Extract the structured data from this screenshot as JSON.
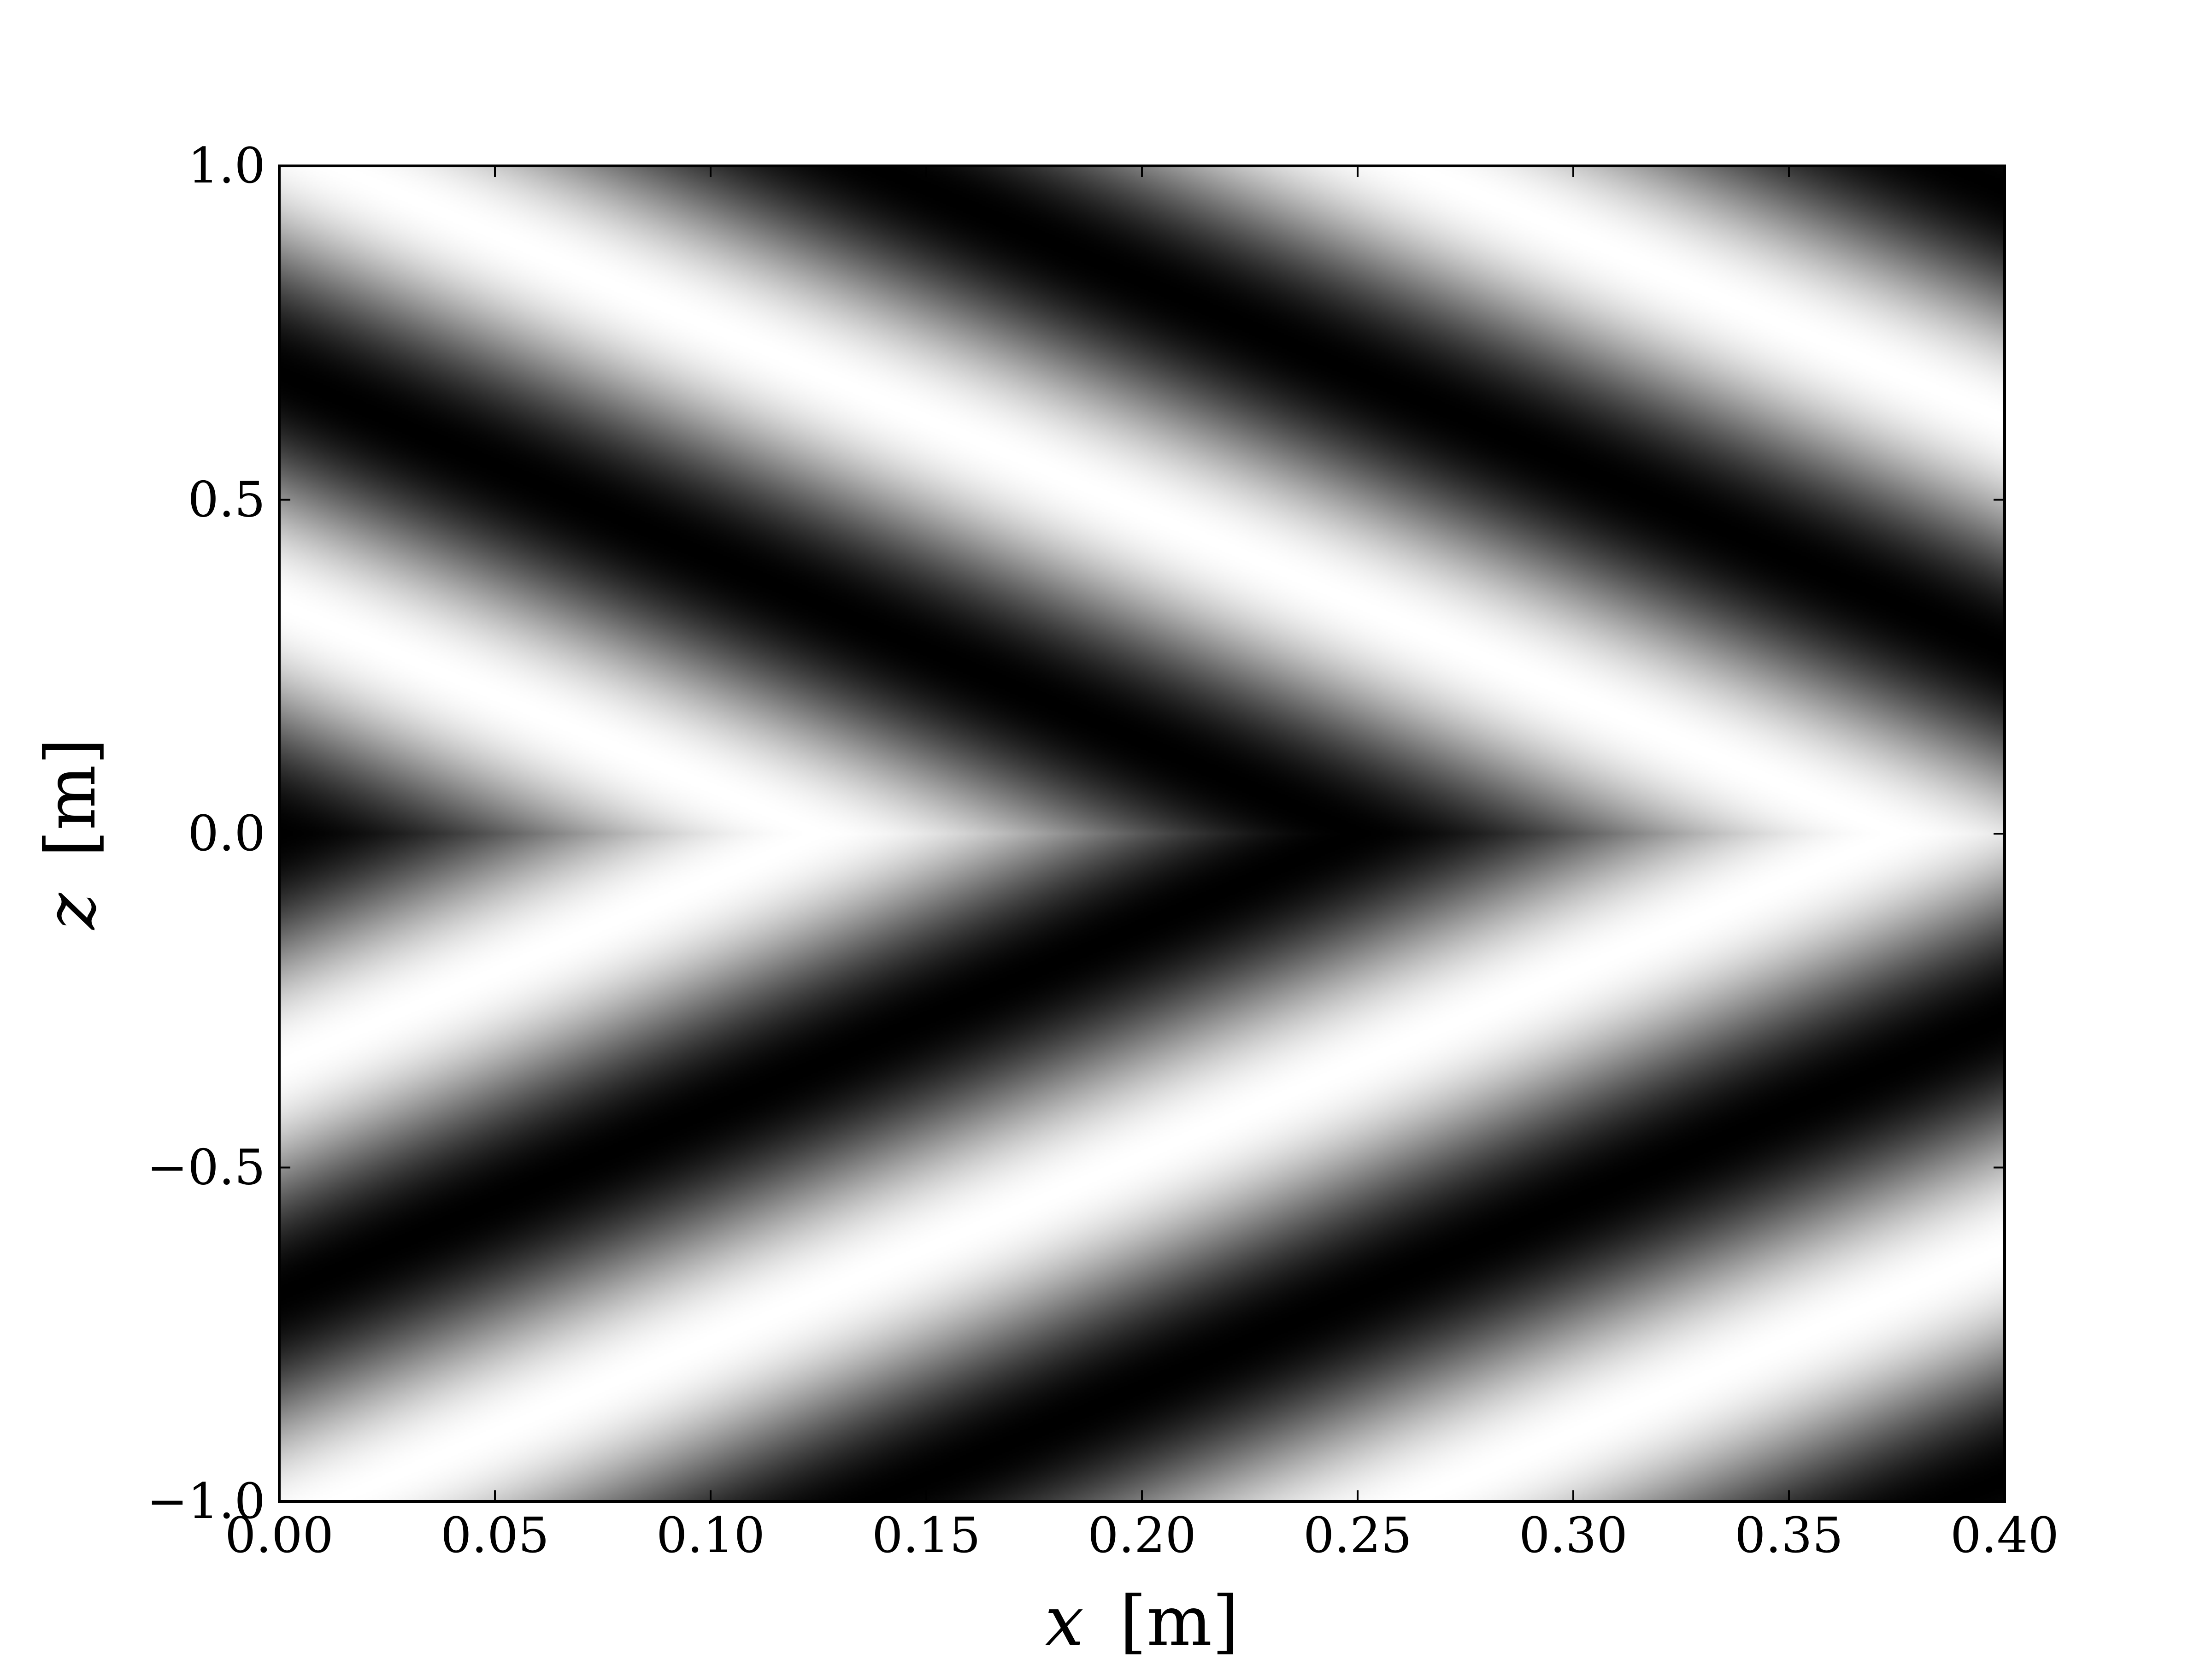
{
  "chart_data": {
    "type": "heatmap",
    "colormap": "gray",
    "pattern": "interference fringes: two plane waves symmetric about z = 0 forming a chevron pattern",
    "xlabel": {
      "symbol": "x",
      "unit": "[m]"
    },
    "ylabel": {
      "symbol": "z",
      "unit": "[m]"
    },
    "xlim": [
      0.0,
      0.4
    ],
    "ylim": [
      -1.0,
      1.0
    ],
    "xticks": [
      0.0,
      0.05,
      0.1,
      0.15,
      0.2,
      0.25,
      0.3,
      0.35,
      0.4
    ],
    "xtick_labels": [
      "0.00",
      "0.05",
      "0.10",
      "0.15",
      "0.20",
      "0.25",
      "0.30",
      "0.35",
      "0.40"
    ],
    "yticks": [
      -1.0,
      -0.5,
      0.0,
      0.5,
      1.0
    ],
    "ytick_labels": [
      "−1.0",
      "−0.5",
      "0.0",
      "0.5",
      "1.0"
    ],
    "field": {
      "wave_period_x": 0.125,
      "wave_period_z": 0.69,
      "phase_origin_x": 0.0,
      "dark_at_origin": true
    },
    "grid": false,
    "legend": "none"
  }
}
